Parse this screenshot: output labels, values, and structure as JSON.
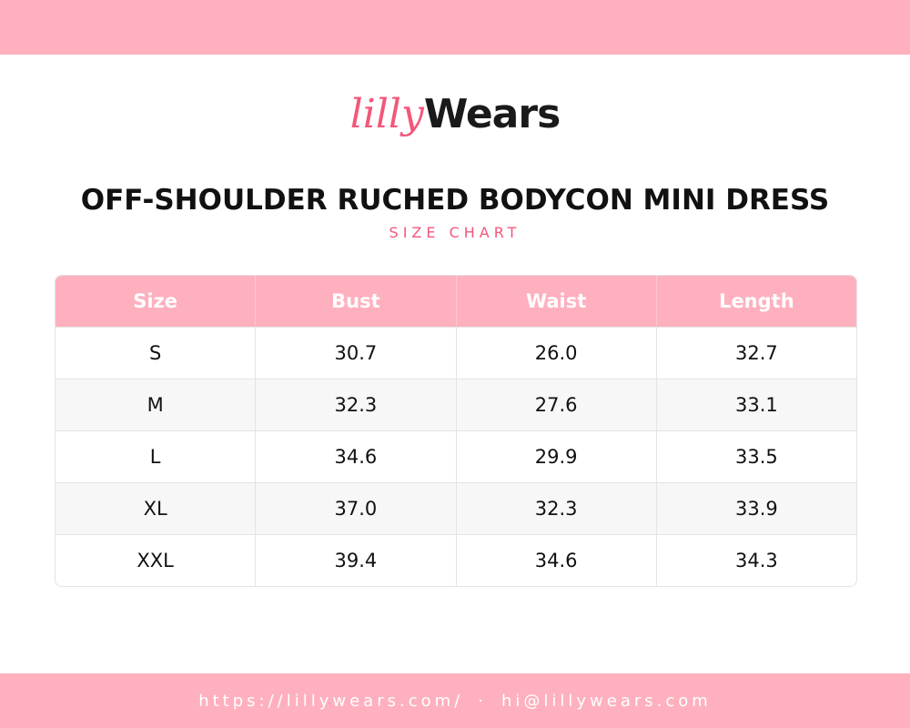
{
  "logo": {
    "script": "lilly",
    "word": "Wears"
  },
  "title": "OFF-SHOULDER RUCHED BODYCON MINI DRESS",
  "subtitle": "SIZE CHART",
  "table": {
    "header": [
      "Size",
      "Bust",
      "Waist",
      "Length"
    ],
    "rows": [
      [
        "S",
        "30.7",
        "26.0",
        "32.7"
      ],
      [
        "M",
        "32.3",
        "27.6",
        "33.1"
      ],
      [
        "L",
        "34.6",
        "29.9",
        "33.5"
      ],
      [
        "XL",
        "37.0",
        "32.3",
        "33.9"
      ],
      [
        "XXL",
        "39.4",
        "34.6",
        "34.3"
      ]
    ]
  },
  "footer": {
    "url": "https://lillywears.com/",
    "separator": "·",
    "email": "hi@lillywears.com"
  }
}
